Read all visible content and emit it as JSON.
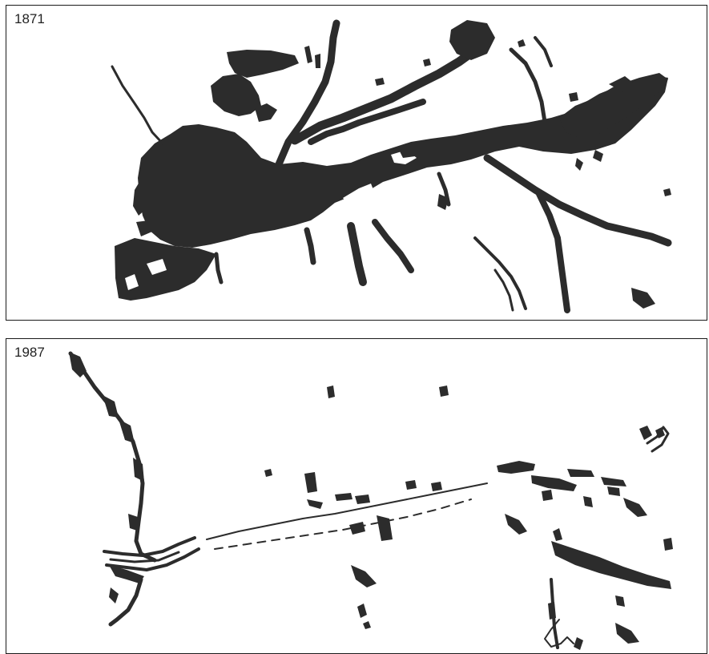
{
  "panels": [
    {
      "year": "1871",
      "description_color": "#2c2c2c"
    },
    {
      "year": "1987",
      "description_color": "#2c2c2c"
    }
  ]
}
